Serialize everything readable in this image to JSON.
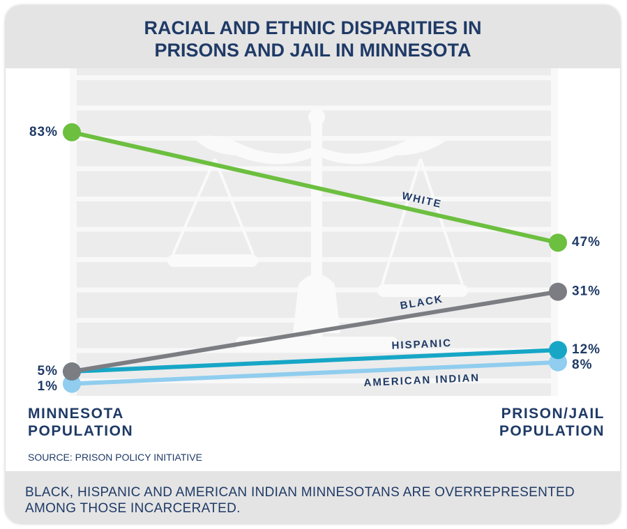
{
  "chart_data": {
    "type": "slope",
    "title": "RACIAL AND ETHNIC DISPARITIES IN PRISONS AND JAIL IN MINNESOTA",
    "categories": [
      "MINNESOTA POPULATION",
      "PRISON/JAIL POPULATION"
    ],
    "ylim": [
      0,
      100
    ],
    "series": [
      {
        "name": "WHITE",
        "color": "#6cbf3f",
        "values": [
          83,
          47
        ],
        "value_labels": [
          "83%",
          "47%"
        ]
      },
      {
        "name": "BLACK",
        "color": "#7b7d82",
        "values": [
          5,
          31
        ],
        "value_labels": [
          null,
          "31%"
        ]
      },
      {
        "name": "HISPANIC",
        "color": "#17a6c6",
        "values": [
          5,
          12
        ],
        "value_labels": [
          "5%",
          "12%"
        ]
      },
      {
        "name": "AMERICAN INDIAN",
        "color": "#90cdee",
        "values": [
          1,
          8
        ],
        "value_labels": [
          "1%",
          "8%"
        ]
      }
    ],
    "source": "SOURCE: PRISON POLICY INITIATIVE",
    "note": "BLACK, HISPANIC AND AMERICAN INDIAN MINNESOTANS ARE OVERREPRESENTED AMONG THOSE INCARCERATED."
  }
}
